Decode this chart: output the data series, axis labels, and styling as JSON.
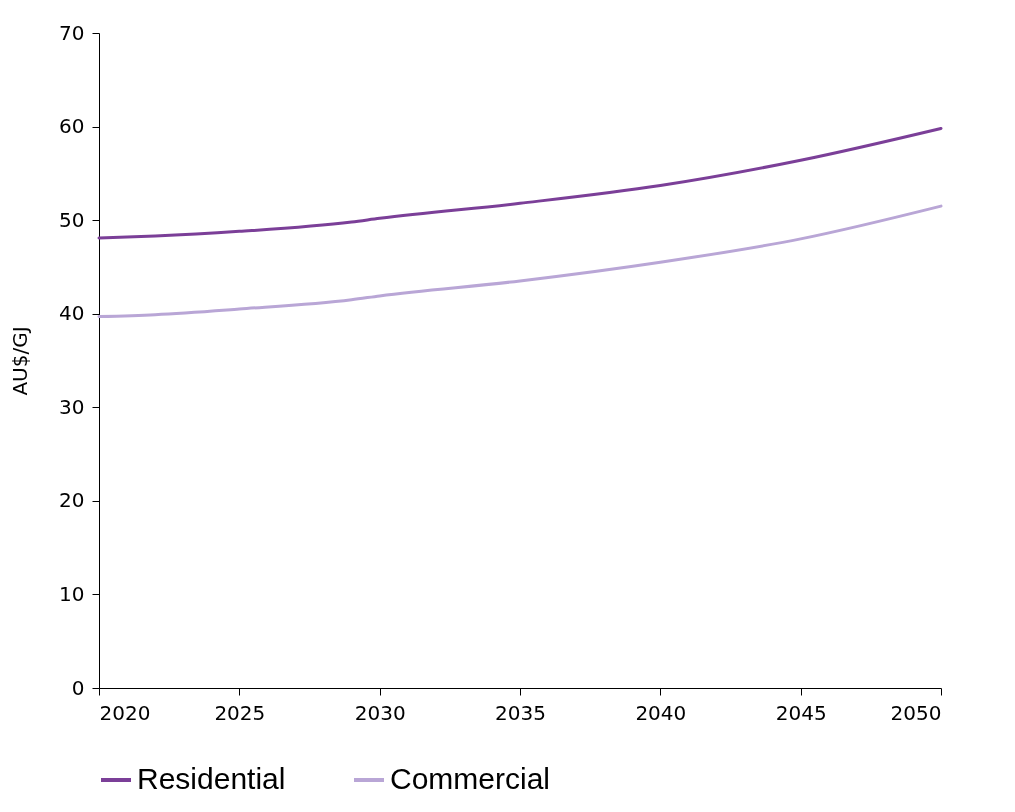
{
  "chart_data": {
    "type": "line",
    "ylabel": "AU$/GJ",
    "x": [
      2020,
      2022,
      2025,
      2029,
      2030,
      2035,
      2040,
      2045,
      2050
    ],
    "series": [
      {
        "name": "Residential",
        "color": "#7b3f98",
        "values": [
          48.1,
          48.3,
          48.8,
          49.8,
          50.2,
          51.8,
          53.7,
          56.4,
          59.8
        ]
      },
      {
        "name": "Commercial",
        "color": "#b9a6d6",
        "values": [
          39.7,
          39.9,
          40.5,
          41.5,
          41.9,
          43.5,
          45.5,
          48.0,
          51.5
        ]
      }
    ],
    "xlim": [
      2020,
      2050
    ],
    "xticks": [
      2020,
      2025,
      2030,
      2035,
      2040,
      2045,
      2050
    ],
    "ylim": [
      0,
      70
    ],
    "yticks": [
      0,
      10,
      20,
      30,
      40,
      50,
      60,
      70
    ],
    "grid": false,
    "legend": "bottom",
    "marker": "none",
    "line_style": "solid"
  }
}
